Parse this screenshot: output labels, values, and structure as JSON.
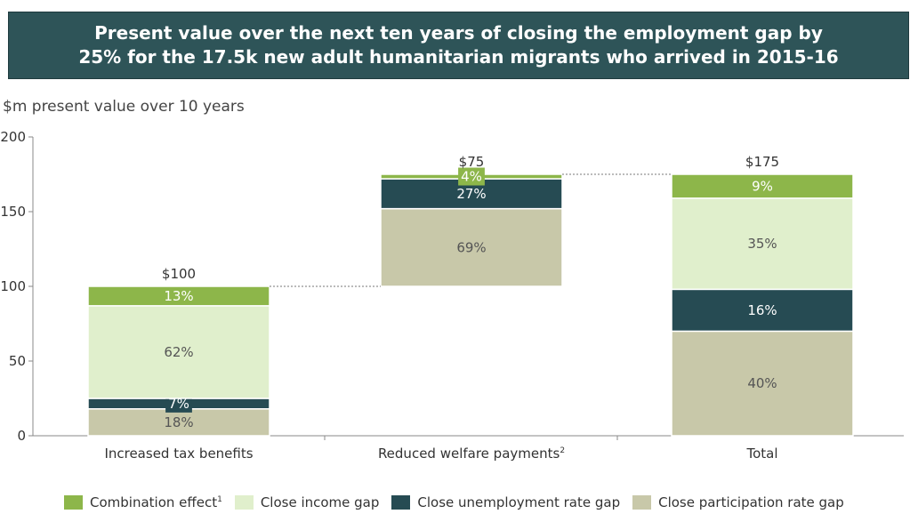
{
  "title": {
    "line1": "Present value over the next ten years of closing the employment gap by",
    "line2": "25% for the 17.5k new adult humanitarian migrants who arrived in 2015-16"
  },
  "colors": {
    "title_bg": "#2e5458",
    "combination": "#8db64a",
    "income": "#e0efcc",
    "unemployment": "#264b53",
    "participation": "#c8c8a9"
  },
  "legend": [
    {
      "label": "Combination effect",
      "sup": "1",
      "color": "#8db64a"
    },
    {
      "label": "Close income gap",
      "sup": "",
      "color": "#e0efcc"
    },
    {
      "label": "Close unemployment rate gap",
      "sup": "",
      "color": "#264b53"
    },
    {
      "label": "Close participation rate gap",
      "sup": "",
      "color": "#c8c8a9"
    }
  ],
  "chart_data": {
    "type": "bar",
    "subtype": "stacked waterfall",
    "ylabel": "$m present value over 10 years",
    "ylim": [
      0,
      200
    ],
    "yticks": [
      0,
      50,
      100,
      150,
      200
    ],
    "categories": [
      {
        "label": "Increased tax benefits",
        "sup": ""
      },
      {
        "label": "Reduced welfare payments",
        "sup": "2"
      },
      {
        "label": "Total",
        "sup": ""
      }
    ],
    "totals": [
      "$100",
      "$75",
      "$175"
    ],
    "base": [
      0,
      100,
      0
    ],
    "series": [
      {
        "name": "Close participation rate gap",
        "color": "#c8c8a9",
        "label_color": "#555555",
        "values": [
          18,
          52,
          70
        ],
        "labels": [
          "18%",
          "69%",
          "40%"
        ]
      },
      {
        "name": "Close unemployment rate gap",
        "color": "#264b53",
        "label_color": "#ffffff",
        "values": [
          7,
          20,
          28
        ],
        "labels": [
          "7%",
          "27%",
          "16%"
        ]
      },
      {
        "name": "Close income gap",
        "color": "#e0efcc",
        "label_color": "#555555",
        "values": [
          62,
          0,
          61
        ],
        "labels": [
          "62%",
          "",
          "35%"
        ]
      },
      {
        "name": "Combination effect",
        "color": "#8db64a",
        "label_color": "#ffffff",
        "values": [
          13,
          3,
          16
        ],
        "labels": [
          "13%",
          "4%",
          "9%"
        ]
      }
    ]
  }
}
